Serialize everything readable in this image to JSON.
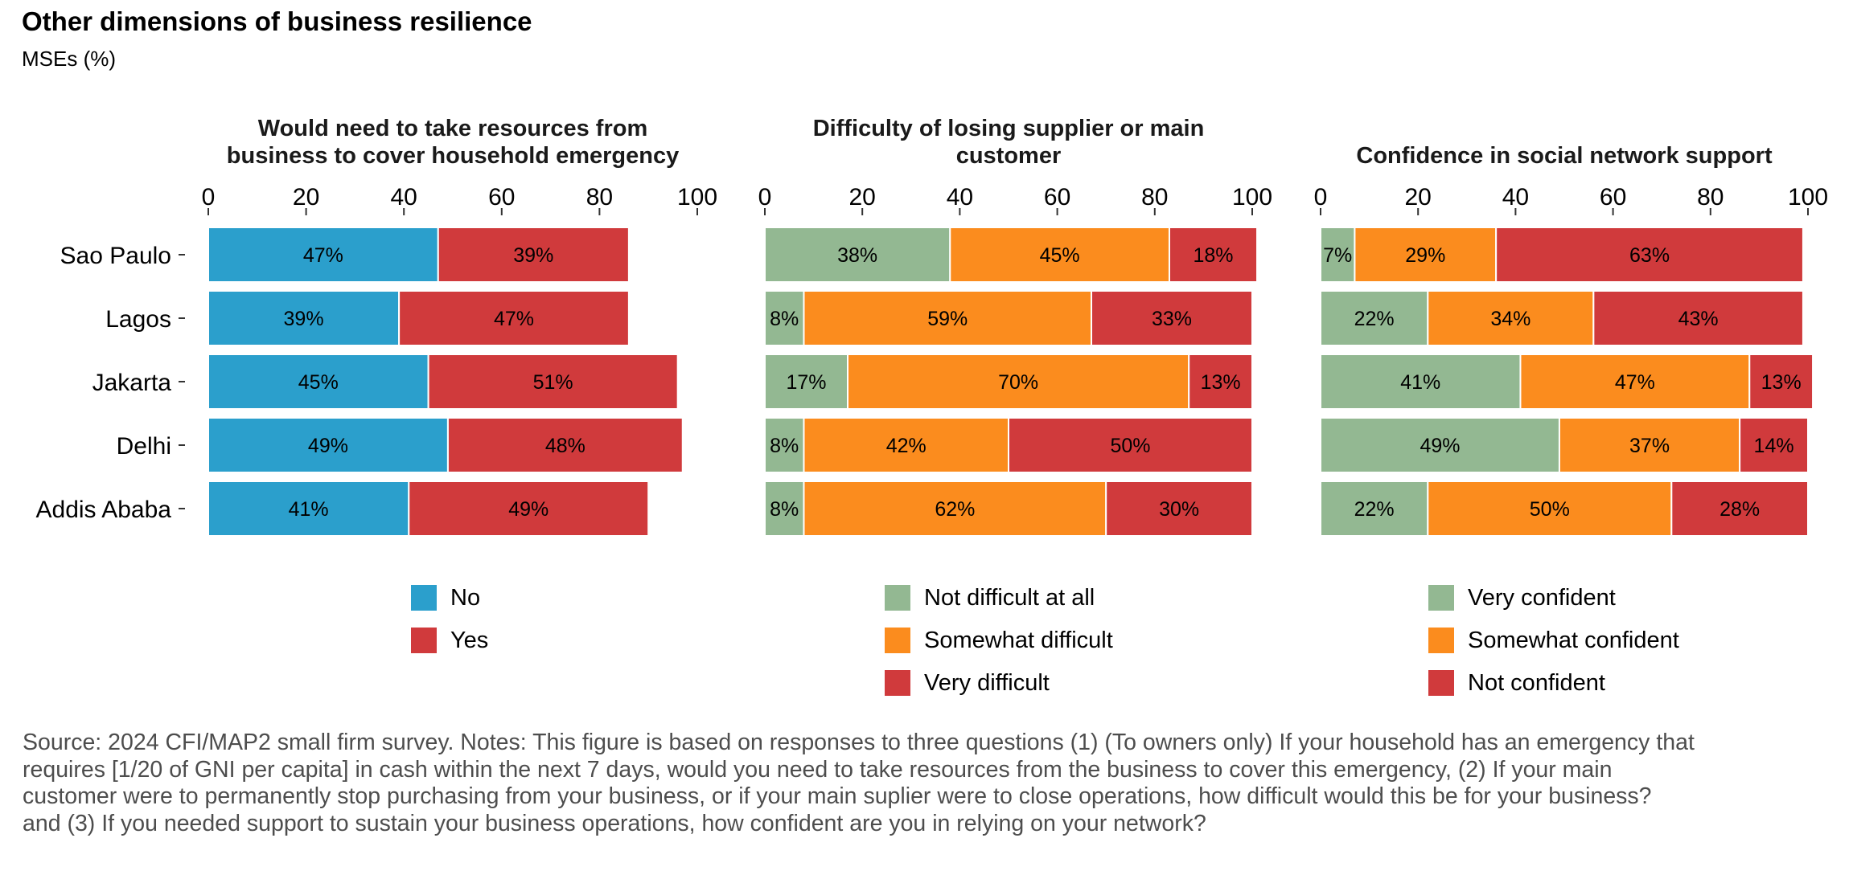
{
  "title": "Other dimensions of business resilience",
  "subtitle": "MSEs (%)",
  "footer": "Source: 2024 CFI/MAP2 small firm survey. Notes: This figure is based on responses to three questions (1) (To owners only) If your household has an emergency that requires [1/20 of GNI per capita] in cash within the next 7 days, would you need to take resources from the business to cover this emergency, (2) If your main customer were to permanently stop purchasing from your business, or if your main suplier were to close operations, how difficult would this be for your business? and (3) If you needed support to sustain your business operations, how confident are you in relying on your network?",
  "colors": {
    "No": "#2b9fcc",
    "Yes": "#d03a3c",
    "Not difficult at all": "#93b892",
    "Somewhat difficult": "#fb8c1e",
    "Very difficult": "#d03a3c",
    "Very confident": "#93b892",
    "Somewhat confident": "#fb8c1e",
    "Not confident": "#d03a3c"
  },
  "chart_data": [
    {
      "type": "bar",
      "orientation": "horizontal",
      "stacked": true,
      "title": "Would need to take resources from business to cover household emergency",
      "title_lines": [
        "Would need to take resources from",
        "business to cover household emergency"
      ],
      "categories": [
        "Sao Paulo",
        "Lagos",
        "Jakarta",
        "Delhi",
        "Addis Ababa"
      ],
      "series": [
        {
          "name": "No",
          "values": [
            47,
            39,
            45,
            49,
            41
          ],
          "labels": [
            "47%",
            "39%",
            "45%",
            "49%",
            "41%"
          ]
        },
        {
          "name": "Yes",
          "values": [
            39,
            47,
            51,
            48,
            49
          ],
          "labels": [
            "39%",
            "47%",
            "51%",
            "48%",
            "49%"
          ]
        }
      ],
      "xlim": [
        0,
        100
      ],
      "xticks": [
        0,
        20,
        40,
        60,
        80,
        100
      ],
      "xlabel": "",
      "ylabel": "",
      "grid": false,
      "legend": "bottom"
    },
    {
      "type": "bar",
      "orientation": "horizontal",
      "stacked": true,
      "title": "Difficulty of losing supplier or main customer",
      "title_lines": [
        "Difficulty of losing supplier or main",
        "customer"
      ],
      "categories": [
        "Sao Paulo",
        "Lagos",
        "Jakarta",
        "Delhi",
        "Addis Ababa"
      ],
      "series": [
        {
          "name": "Not difficult at all",
          "values": [
            38,
            8,
            17,
            8,
            8
          ],
          "labels": [
            "38%",
            "8%",
            "17%",
            "8%",
            "8%"
          ]
        },
        {
          "name": "Somewhat difficult",
          "values": [
            45,
            59,
            70,
            42,
            62
          ],
          "labels": [
            "45%",
            "59%",
            "70%",
            "42%",
            "62%"
          ]
        },
        {
          "name": "Very difficult",
          "values": [
            18,
            33,
            13,
            50,
            30
          ],
          "labels": [
            "18%",
            "33%",
            "13%",
            "50%",
            "30%"
          ]
        }
      ],
      "xlim": [
        0,
        100
      ],
      "xticks": [
        0,
        20,
        40,
        60,
        80,
        100
      ],
      "xlabel": "",
      "ylabel": "",
      "grid": false,
      "legend": "bottom"
    },
    {
      "type": "bar",
      "orientation": "horizontal",
      "stacked": true,
      "title": "Confidence in social network support",
      "title_lines": [
        "Confidence in social network support"
      ],
      "categories": [
        "Sao Paulo",
        "Lagos",
        "Jakarta",
        "Delhi",
        "Addis Ababa"
      ],
      "series": [
        {
          "name": "Very confident",
          "values": [
            7,
            22,
            41,
            49,
            22
          ],
          "labels": [
            "7%",
            "22%",
            "41%",
            "49%",
            "22%"
          ]
        },
        {
          "name": "Somewhat confident",
          "values": [
            29,
            34,
            47,
            37,
            50
          ],
          "labels": [
            "29%",
            "34%",
            "47%",
            "37%",
            "50%"
          ]
        },
        {
          "name": "Not confident",
          "values": [
            63,
            43,
            13,
            14,
            28
          ],
          "labels": [
            "63%",
            "43%",
            "13%",
            "14%",
            "28%"
          ]
        }
      ],
      "xlim": [
        0,
        100
      ],
      "xticks": [
        0,
        20,
        40,
        60,
        80,
        100
      ],
      "xlabel": "",
      "ylabel": "",
      "grid": false,
      "legend": "bottom"
    }
  ]
}
